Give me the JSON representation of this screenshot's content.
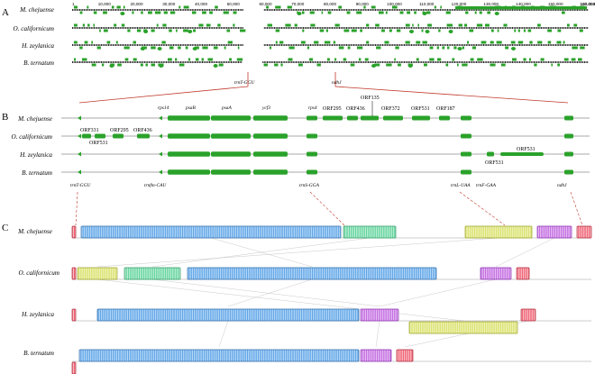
{
  "panels": {
    "a": "A",
    "b": "B",
    "c": "C"
  },
  "species": [
    "M. chejuense",
    "O. californicum",
    "H. zeylanica",
    "B. ternatum"
  ],
  "scale_ticks": [
    "1",
    "10,000",
    "20,000",
    "30,000",
    "40,000",
    "50,000",
    "60,000",
    "70,000",
    "80,000",
    "90,000",
    "100,000",
    "110,000",
    "120,000",
    "130,000",
    "140,000",
    "150,000",
    "160,000"
  ],
  "scale_max": 160004,
  "panel_a_markers": {
    "left": "trnT-GGU",
    "right": "ndhJ"
  },
  "panel_b_genes_top": [
    "rps14",
    "psaB",
    "psaA",
    "ycf3",
    "rps4"
  ],
  "panel_b_orfs": {
    "M. chejuense": [
      "ORF295",
      "ORF436",
      "ORF135",
      "ORF372",
      "ORF531",
      "ORF187"
    ],
    "O. californicum": [
      "ORF331",
      "ORF531",
      "ORF295",
      "ORF436"
    ],
    "H. zeylanica": [
      "ORF531",
      "ORF531"
    ]
  },
  "panel_b_bottom_labels": [
    "trnT-GGU",
    "trnfm-CAU",
    "trnS-GGA",
    "trnL-UAA",
    "trnF-GAA",
    "ndhJ"
  ],
  "colors": {
    "gene": "#2aa22a",
    "chromosome": "#2b2b2b",
    "lcb_blue": "#5ba3e6",
    "lcb_green": "#5ed29a",
    "lcb_yellow": "#d9e16a",
    "lcb_purple": "#c168e0",
    "lcb_red": "#ef5d6f",
    "connector": "#c0392b"
  }
}
